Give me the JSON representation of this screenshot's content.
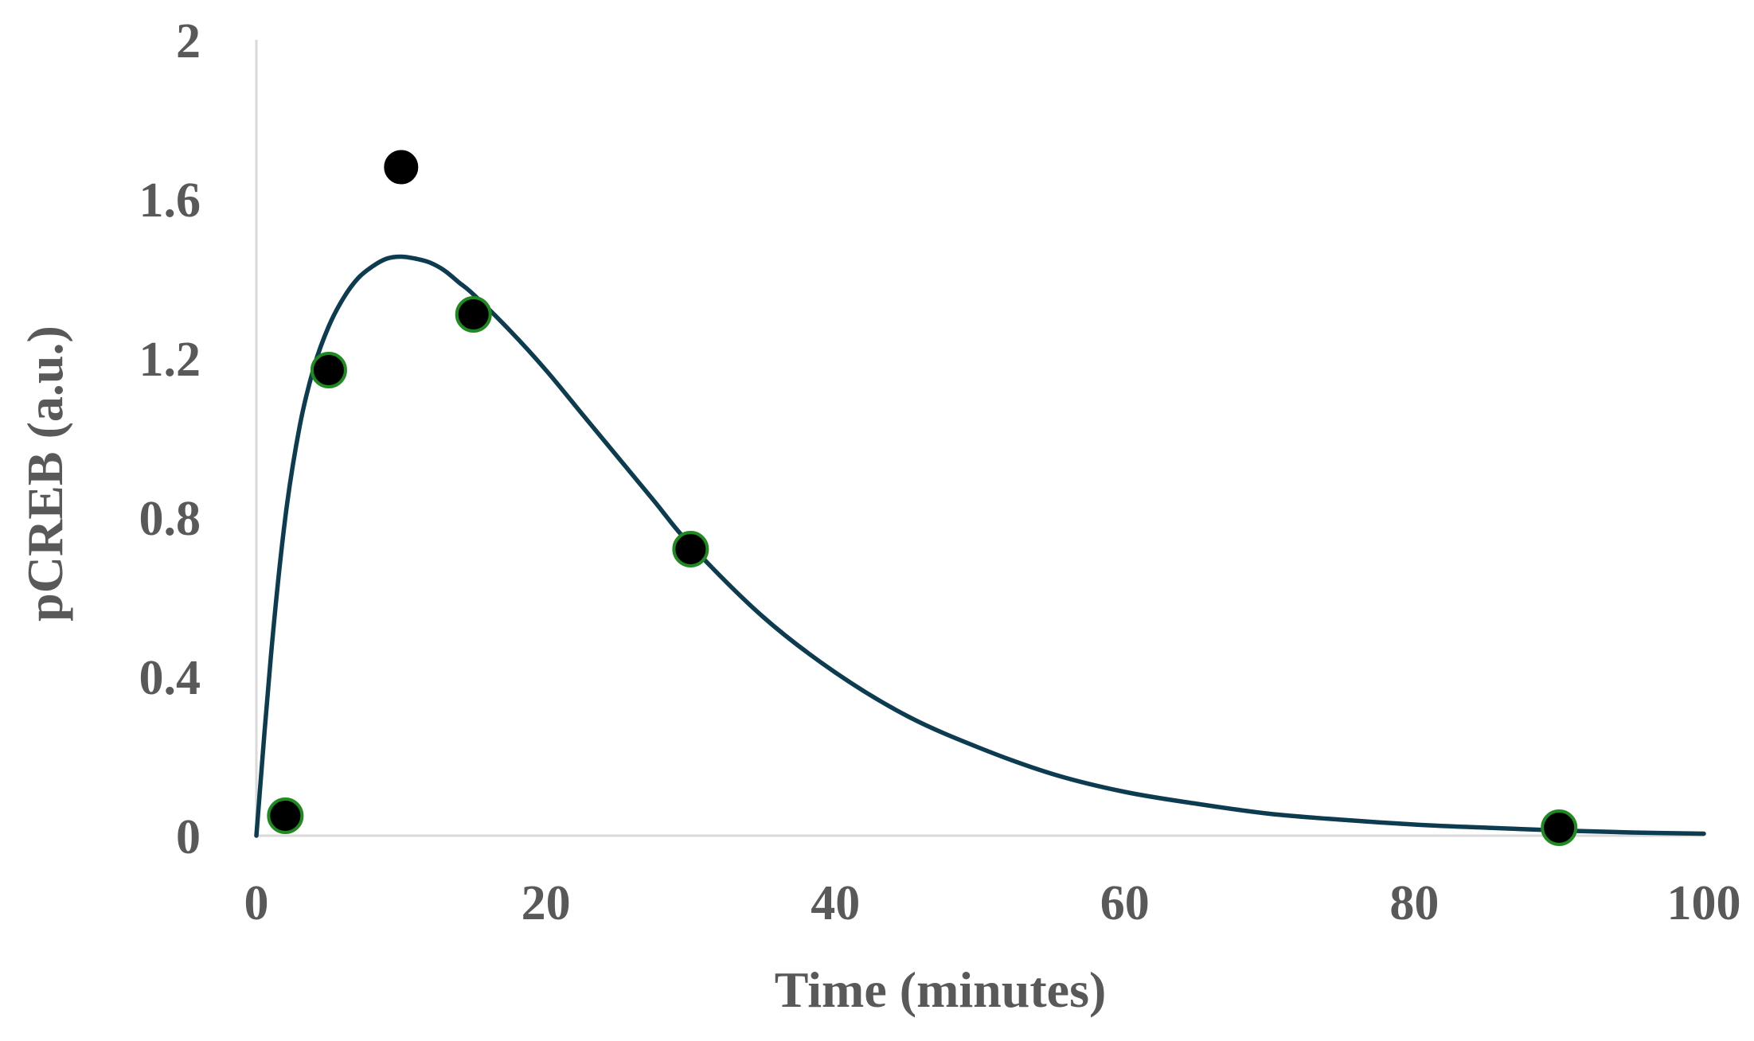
{
  "chart_data": {
    "type": "scatter",
    "title": "",
    "xlabel": "Time (minutes)",
    "ylabel": "pCREB (a.u.)",
    "xlim": [
      0,
      100
    ],
    "ylim": [
      0,
      2
    ],
    "x_ticks": [
      "0",
      "20",
      "40",
      "60",
      "80",
      "100"
    ],
    "y_ticks": [
      "0",
      "0.4",
      "0.8",
      "1.2",
      "1.6",
      "2"
    ],
    "grid": false,
    "legend": "none",
    "series": [
      {
        "kind": "scatter",
        "color": "#000000",
        "outline_color": "#1f8a1f",
        "points": [
          {
            "x": 2,
            "y": 0.05,
            "outlined": true
          },
          {
            "x": 5,
            "y": 1.17,
            "outlined": true
          },
          {
            "x": 10,
            "y": 1.68,
            "outlined": false
          },
          {
            "x": 15,
            "y": 1.31,
            "outlined": true
          },
          {
            "x": 30,
            "y": 0.72,
            "outlined": true
          },
          {
            "x": 90,
            "y": 0.02,
            "outlined": true
          }
        ]
      },
      {
        "kind": "line",
        "color": "#0d3b4f",
        "x": [
          0,
          1,
          2,
          3,
          4,
          5,
          6,
          7,
          8,
          9,
          10,
          11,
          12,
          13,
          14,
          15,
          17.5,
          20,
          22.5,
          25,
          27.5,
          30,
          35,
          40,
          45,
          50,
          55,
          60,
          65,
          70,
          75,
          80,
          85,
          90,
          95,
          100
        ],
        "y": [
          0,
          0.45,
          0.8,
          1.03,
          1.18,
          1.28,
          1.35,
          1.4,
          1.43,
          1.45,
          1.455,
          1.45,
          1.44,
          1.42,
          1.39,
          1.36,
          1.27,
          1.17,
          1.06,
          0.95,
          0.84,
          0.73,
          0.55,
          0.41,
          0.3,
          0.22,
          0.155,
          0.11,
          0.08,
          0.055,
          0.04,
          0.028,
          0.02,
          0.013,
          0.008,
          0.005
        ]
      }
    ]
  }
}
